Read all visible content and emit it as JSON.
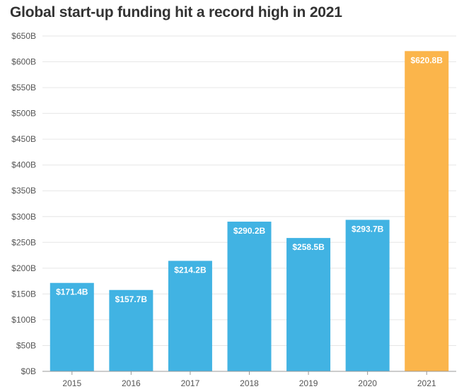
{
  "chart_data": {
    "type": "bar",
    "title": "Global start-up funding hit a record high in 2021",
    "xlabel": "",
    "ylabel": "",
    "categories": [
      "2015",
      "2016",
      "2017",
      "2018",
      "2019",
      "2020",
      "2021"
    ],
    "values": [
      171.4,
      157.7,
      214.2,
      290.2,
      258.5,
      293.7,
      620.8
    ],
    "data_labels": [
      "$171.4B",
      "$157.7B",
      "$214.2B",
      "$290.2B",
      "$258.5B",
      "$293.7B",
      "$620.8B"
    ],
    "ylim": [
      0,
      650
    ],
    "yticks": [
      0,
      50,
      100,
      150,
      200,
      250,
      300,
      350,
      400,
      450,
      500,
      550,
      600,
      650
    ],
    "ytick_labels": [
      "$0B",
      "$50B",
      "$100B",
      "$150B",
      "$200B",
      "$250B",
      "$300B",
      "$350B",
      "$400B",
      "$450B",
      "$500B",
      "$550B",
      "$600B",
      "$650B"
    ],
    "grid": true,
    "colors": {
      "default_bar": "#41b3e3",
      "highlight_bar": "#fbb54b",
      "grid": "#e6e6e6",
      "axis": "#999999",
      "title": "#333333"
    },
    "highlight_categories": [
      "2021"
    ]
  }
}
